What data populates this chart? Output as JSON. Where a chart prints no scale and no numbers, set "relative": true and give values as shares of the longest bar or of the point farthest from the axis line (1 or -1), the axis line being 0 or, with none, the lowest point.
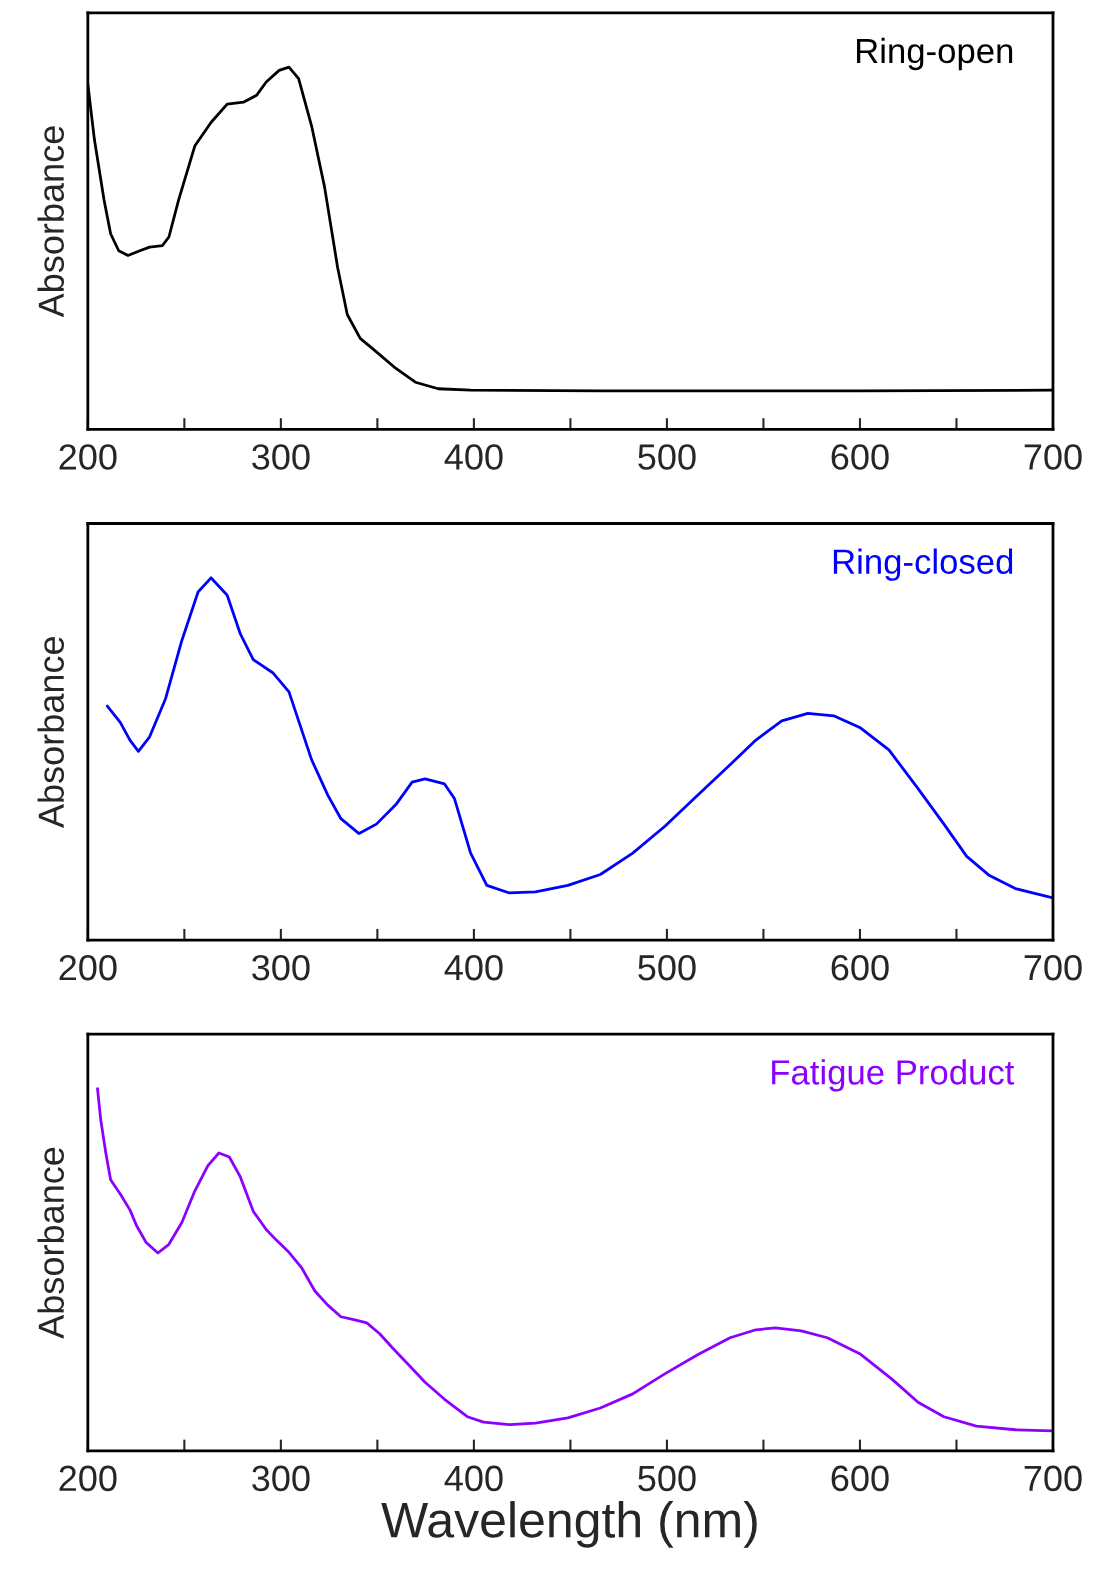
{
  "chart_data": [
    {
      "type": "line",
      "relative": true,
      "ylabel": "Absorbance",
      "xlim": [
        200,
        700
      ],
      "tick_labels": "x",
      "grid": false,
      "xticks": [
        200,
        {
          "value": 250,
          "label": null
        },
        300,
        {
          "value": 350,
          "label": null
        },
        400,
        {
          "value": 450,
          "label": null
        },
        500,
        {
          "value": 550,
          "label": null
        },
        600,
        {
          "value": 650,
          "label": null
        },
        700
      ],
      "series": [
        {
          "name": "Ring-open",
          "color": "#000000",
          "x": [
            200,
            203.4,
            208.4,
            211.8,
            216,
            220.8,
            226.9,
            232,
            238.6,
            242,
            247,
            255.4,
            263.8,
            272.2,
            280.6,
            287.4,
            292.4,
            299.1,
            304.2,
            309.2,
            315.9,
            322.6,
            329.4,
            334.4,
            341.1,
            349.5,
            359.6,
            369.7,
            381.5,
            398.3,
            465.5,
            599.9,
            700
          ],
          "values": [
            0.953,
            0.8,
            0.633,
            0.54,
            0.493,
            0.48,
            0.493,
            0.503,
            0.507,
            0.531,
            0.633,
            0.782,
            0.847,
            0.898,
            0.903,
            0.922,
            0.959,
            0.991,
            1.0,
            0.968,
            0.838,
            0.67,
            0.447,
            0.317,
            0.251,
            0.214,
            0.168,
            0.13,
            0.112,
            0.108,
            0.106,
            0.106,
            0.108
          ]
        }
      ]
    },
    {
      "type": "line",
      "relative": true,
      "ylabel": "Absorbance",
      "xlim": [
        200,
        700
      ],
      "tick_labels": "x",
      "grid": false,
      "xticks": [
        200,
        {
          "value": 250,
          "label": null
        },
        300,
        {
          "value": 350,
          "label": null
        },
        400,
        {
          "value": 450,
          "label": null
        },
        500,
        {
          "value": 550,
          "label": null
        },
        600,
        {
          "value": 650,
          "label": null
        },
        700
      ],
      "series": [
        {
          "name": "Ring-closed",
          "color": "#0000ff",
          "x": [
            210.1,
            216.8,
            221.8,
            226.2,
            231.9,
            240.3,
            248.7,
            257.1,
            263.8,
            272.2,
            279,
            285.7,
            295.8,
            304.2,
            315.9,
            324.3,
            331.1,
            340.5,
            349.5,
            359.6,
            368,
            374.7,
            384.8,
            389.9,
            398.3,
            406.7,
            418.4,
            431.9,
            448.7,
            465.5,
            482.3,
            499.1,
            515.9,
            532.7,
            546.1,
            559.5,
            573,
            586.4,
            599.9,
            615,
            630.1,
            643.5,
            655.3,
            667.1,
            680.5,
            700
          ],
          "values": [
            0.646,
            0.601,
            0.552,
            0.521,
            0.56,
            0.667,
            0.827,
            0.961,
            1.0,
            0.952,
            0.845,
            0.774,
            0.738,
            0.685,
            0.498,
            0.4,
            0.335,
            0.294,
            0.32,
            0.374,
            0.436,
            0.445,
            0.431,
            0.391,
            0.24,
            0.151,
            0.13,
            0.133,
            0.151,
            0.181,
            0.24,
            0.315,
            0.4,
            0.484,
            0.552,
            0.605,
            0.626,
            0.619,
            0.587,
            0.525,
            0.418,
            0.32,
            0.231,
            0.178,
            0.142,
            0.116
          ]
        }
      ]
    },
    {
      "type": "line",
      "relative": true,
      "ylabel": "Absorbance",
      "xlabel": "Wavelength (nm)",
      "xlim": [
        200,
        700
      ],
      "tick_labels": "x",
      "grid": false,
      "xticks": [
        200,
        {
          "value": 250,
          "label": null
        },
        300,
        {
          "value": 350,
          "label": null
        },
        400,
        {
          "value": 450,
          "label": null
        },
        500,
        {
          "value": 550,
          "label": null
        },
        600,
        {
          "value": 650,
          "label": null
        },
        700
      ],
      "series": [
        {
          "name": "Fatigue Product",
          "color": "#8b00ff",
          "x": [
            205,
            206.7,
            209.4,
            211.8,
            216.8,
            221.8,
            225.2,
            230.2,
            236.3,
            242,
            248.7,
            255.4,
            262.2,
            267.9,
            273.3,
            279,
            285.7,
            292.4,
            297.4,
            304.2,
            310.9,
            317.6,
            324.3,
            331.1,
            337.8,
            344.5,
            351.2,
            358,
            366.4,
            374.7,
            384.8,
            396.6,
            405,
            418.4,
            431.9,
            448.7,
            465.5,
            482.3,
            499.1,
            515.9,
            532.7,
            546.1,
            556.2,
            569.6,
            583.1,
            599.9,
            616.7,
            630.1,
            643.5,
            660.3,
            680.5,
            700
          ],
          "values": [
            1.0,
            0.913,
            0.819,
            0.748,
            0.709,
            0.665,
            0.622,
            0.575,
            0.546,
            0.57,
            0.63,
            0.717,
            0.787,
            0.822,
            0.811,
            0.756,
            0.661,
            0.611,
            0.583,
            0.548,
            0.504,
            0.441,
            0.402,
            0.37,
            0.362,
            0.353,
            0.323,
            0.283,
            0.236,
            0.189,
            0.142,
            0.094,
            0.079,
            0.072,
            0.076,
            0.091,
            0.118,
            0.157,
            0.213,
            0.265,
            0.312,
            0.334,
            0.339,
            0.331,
            0.312,
            0.268,
            0.197,
            0.134,
            0.094,
            0.068,
            0.058,
            0.055
          ]
        }
      ]
    }
  ]
}
